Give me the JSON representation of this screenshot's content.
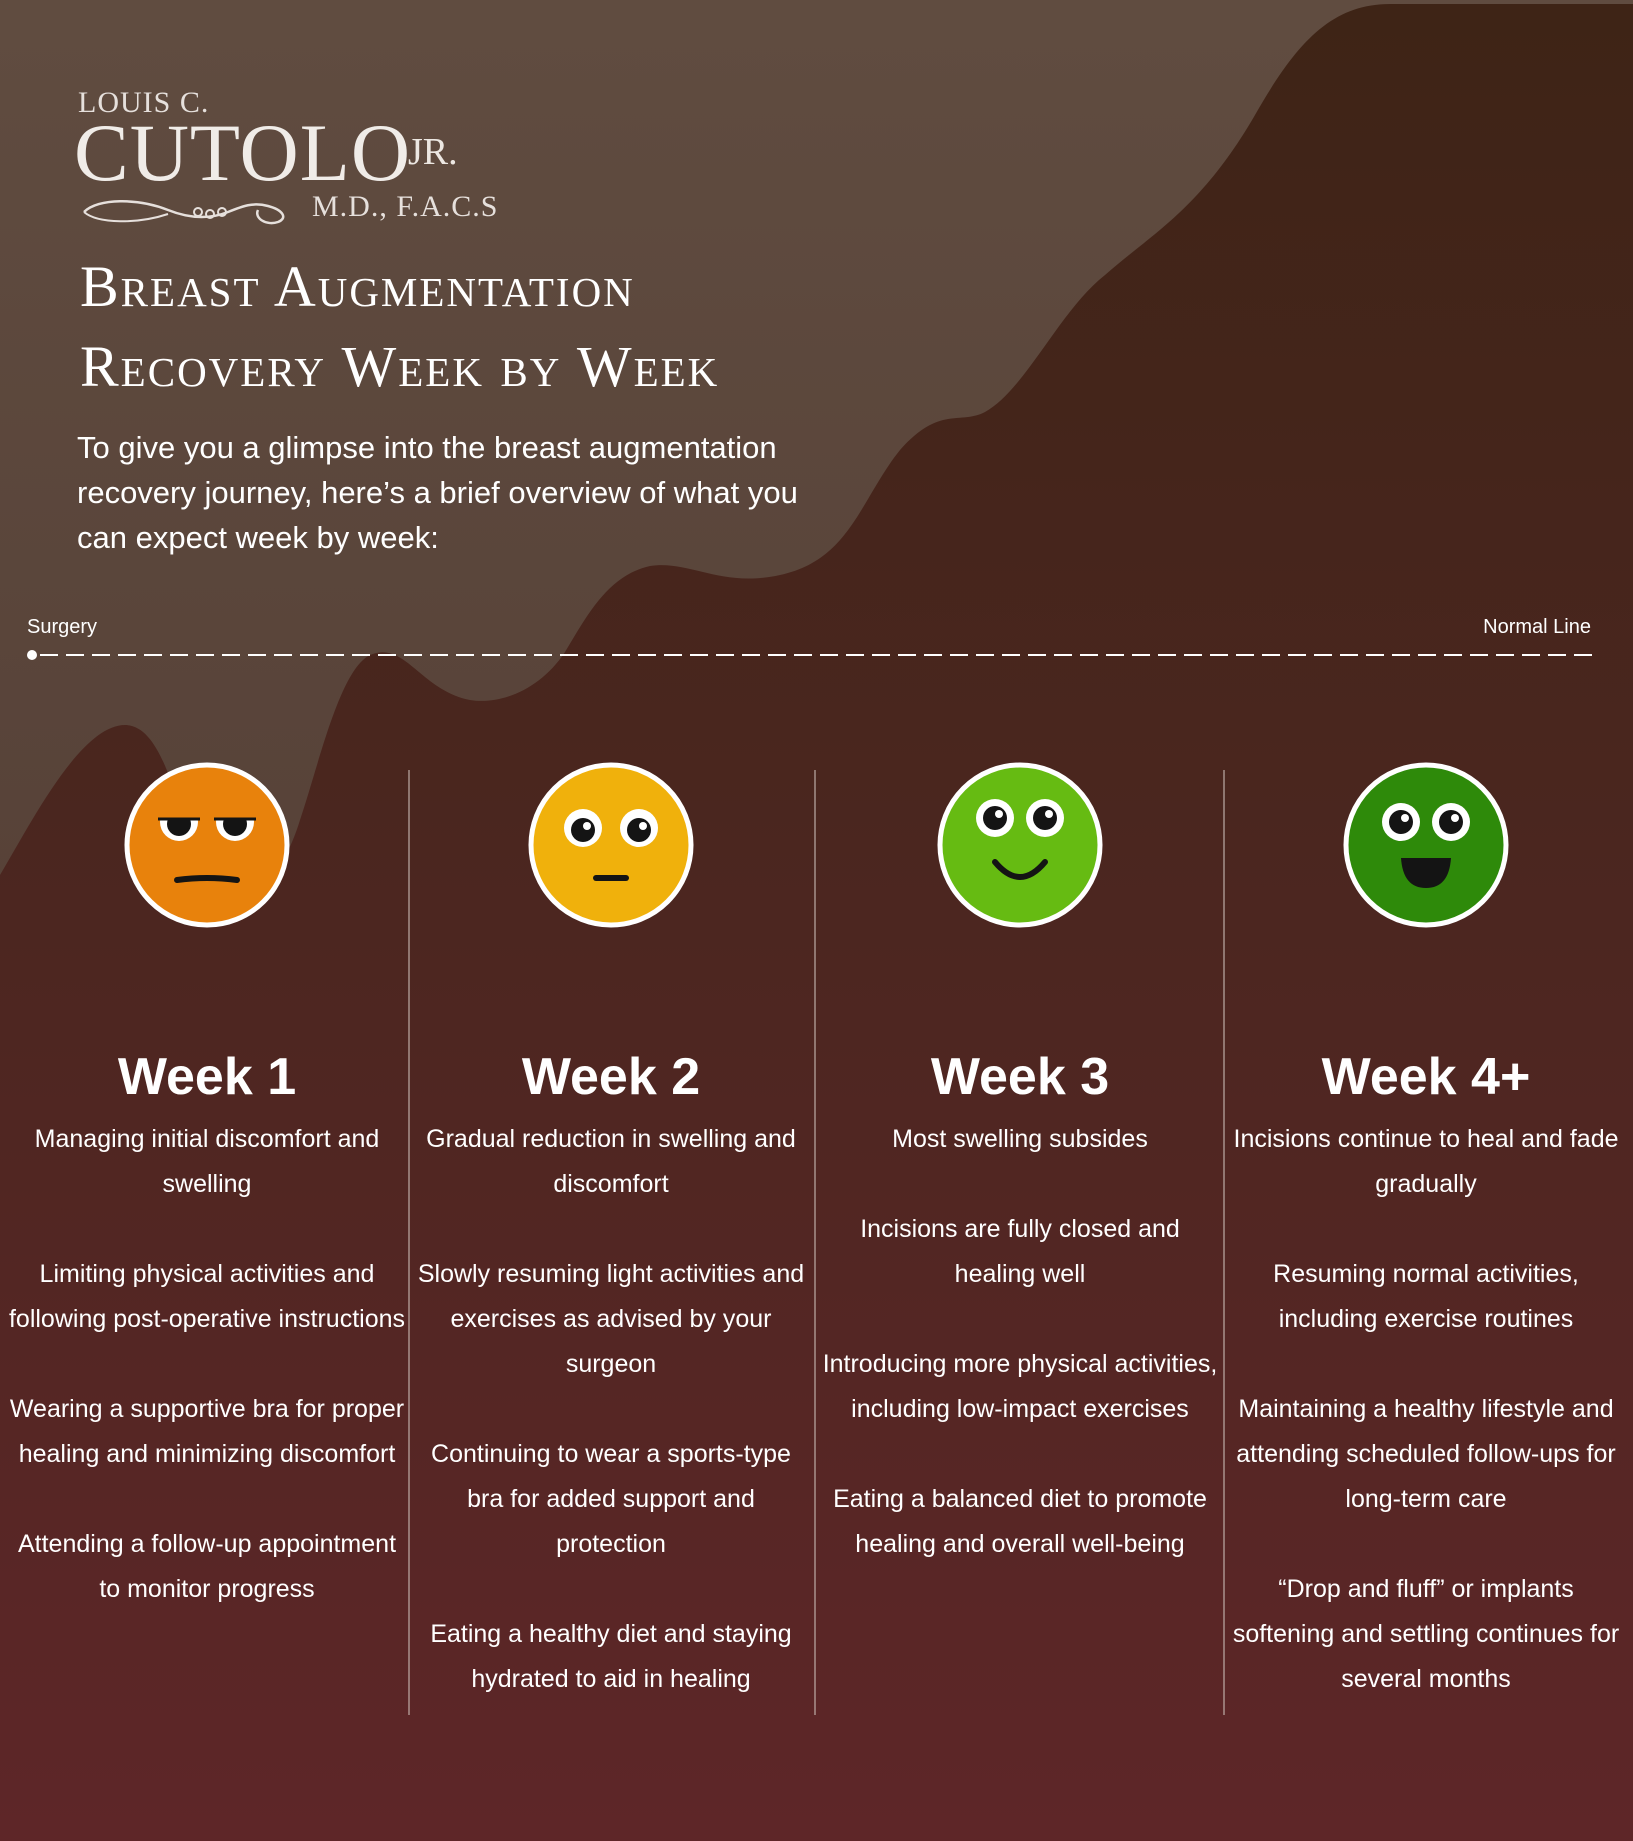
{
  "logo": {
    "name_small": "LOUIS C.",
    "name_big": "CUTOLO",
    "suffix": "JR.",
    "credentials": "M.D., F.A.C.S"
  },
  "title": {
    "line1": "Breast Augmentation",
    "line2": "Recovery Week by Week"
  },
  "intro": "To give you a glimpse into the breast augmentation recovery journey, here’s a brief overview of what you can expect week by week:",
  "timeline": {
    "start_label": "Surgery",
    "end_label": "Normal Line"
  },
  "colors": {
    "background_top": "#5d4a3e",
    "background_bottom": "#5a2426",
    "face_week1": "#e8820c",
    "face_week2": "#f0b10c",
    "face_week3": "#66bb12",
    "face_week4": "#2e8a0a"
  },
  "weeks": [
    {
      "title": "Week 1",
      "face_icon": "unhappy-face-icon",
      "items": [
        "Managing initial discomfort and swelling",
        "Limiting physical activities and following post-operative instructions",
        "Wearing a supportive bra for proper healing and minimizing discomfort",
        "Attending a follow-up appointment to monitor progress"
      ]
    },
    {
      "title": "Week 2",
      "face_icon": "neutral-face-icon",
      "items": [
        "Gradual reduction in swelling and discomfort",
        "Slowly resuming light activities and exercises as advised by your surgeon",
        "Continuing to wear a sports-type bra for added support and protection",
        "Eating a healthy diet and staying hydrated to aid in healing"
      ]
    },
    {
      "title": "Week 3",
      "face_icon": "smiling-face-icon",
      "items": [
        "Most swelling subsides",
        "Incisions are fully closed and healing well",
        "Introducing more physical activities, including low-impact exercises",
        "Eating a balanced diet to promote healing and overall well-being"
      ]
    },
    {
      "title": "Week 4+",
      "face_icon": "happy-face-icon",
      "items": [
        "Incisions continue to heal and fade gradually",
        "Resuming normal activities, including exercise routines",
        "Maintaining a healthy lifestyle and attending scheduled follow-ups for long-term care",
        "“Drop and fluff” or implants softening and settling continues for several months"
      ]
    }
  ]
}
